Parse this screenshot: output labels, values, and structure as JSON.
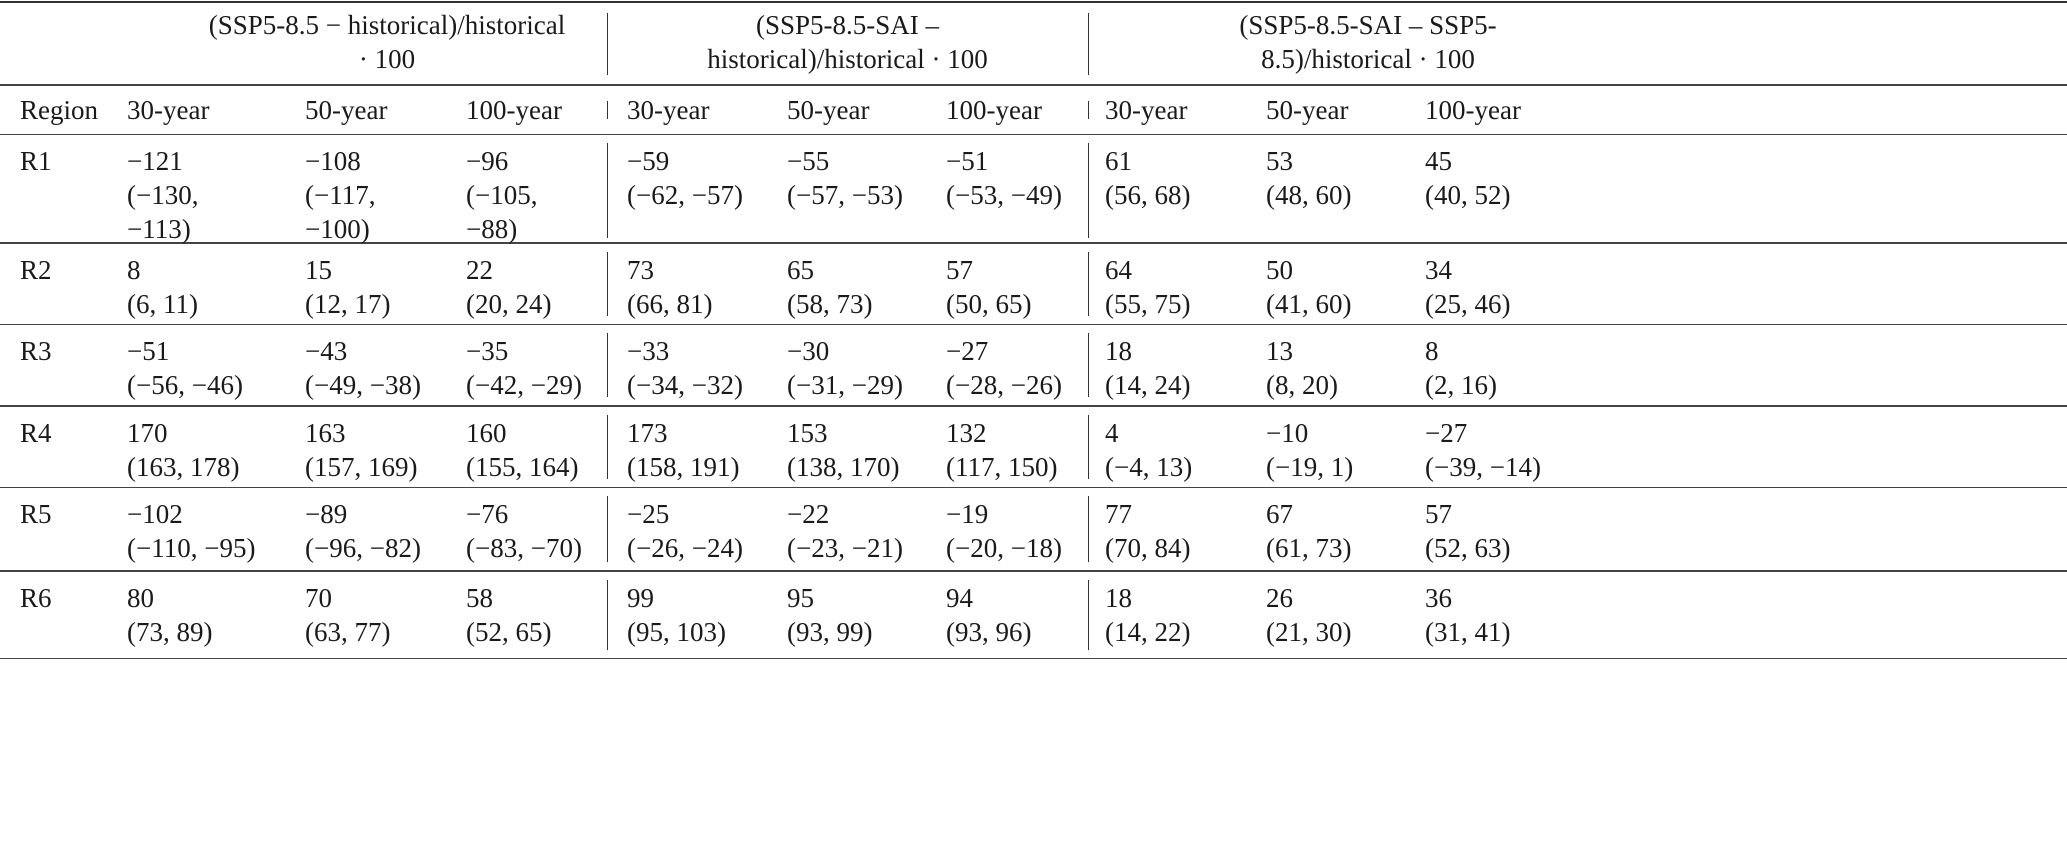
{
  "header": {
    "groups": [
      "(SSP5-8.5 − historical)/historical · 100",
      "(SSP5-8.5-SAI – historical)/historical · 100",
      "(SSP5-8.5-SAI – SSP5-8.5)/historical · 100"
    ],
    "region_label": "Region",
    "periods": [
      "30-year",
      "50-year",
      "100-year",
      "30-year",
      "50-year",
      "100-year",
      "30-year",
      "50-year",
      "100-year"
    ]
  },
  "rows": [
    {
      "region": "R1",
      "cells": [
        {
          "value": "−121",
          "ci": "(−130, −113)"
        },
        {
          "value": "−108",
          "ci": "(−117, −100)"
        },
        {
          "value": "−96",
          "ci": "(−105, −88)"
        },
        {
          "value": "−59",
          "ci": "(−62, −57)"
        },
        {
          "value": "−55",
          "ci": "(−57, −53)"
        },
        {
          "value": "−51",
          "ci": "(−53, −49)"
        },
        {
          "value": "61",
          "ci": "(56, 68)"
        },
        {
          "value": "53",
          "ci": "(48, 60)"
        },
        {
          "value": "45",
          "ci": "(40, 52)"
        }
      ]
    },
    {
      "region": "R2",
      "cells": [
        {
          "value": "8",
          "ci": "(6, 11)"
        },
        {
          "value": "15",
          "ci": "(12, 17)"
        },
        {
          "value": "22",
          "ci": "(20, 24)"
        },
        {
          "value": "73",
          "ci": "(66, 81)"
        },
        {
          "value": "65",
          "ci": "(58, 73)"
        },
        {
          "value": "57",
          "ci": "(50, 65)"
        },
        {
          "value": "64",
          "ci": "(55, 75)"
        },
        {
          "value": "50",
          "ci": "(41, 60)"
        },
        {
          "value": "34",
          "ci": "(25, 46)"
        }
      ]
    },
    {
      "region": "R3",
      "cells": [
        {
          "value": "−51",
          "ci": "(−56, −46)"
        },
        {
          "value": "−43",
          "ci": "(−49, −38)"
        },
        {
          "value": "−35",
          "ci": "(−42, −29)"
        },
        {
          "value": "−33",
          "ci": "(−34, −32)"
        },
        {
          "value": "−30",
          "ci": "(−31, −29)"
        },
        {
          "value": "−27",
          "ci": "(−28, −26)"
        },
        {
          "value": "18",
          "ci": "(14, 24)"
        },
        {
          "value": "13",
          "ci": "(8, 20)"
        },
        {
          "value": "8",
          "ci": "(2, 16)"
        }
      ]
    },
    {
      "region": "R4",
      "cells": [
        {
          "value": "170",
          "ci": "(163, 178)"
        },
        {
          "value": "163",
          "ci": "(157, 169)"
        },
        {
          "value": "160",
          "ci": "(155, 164)"
        },
        {
          "value": "173",
          "ci": "(158, 191)"
        },
        {
          "value": "153",
          "ci": "(138, 170)"
        },
        {
          "value": "132",
          "ci": "(117, 150)"
        },
        {
          "value": "4",
          "ci": "(−4, 13)"
        },
        {
          "value": "−10",
          "ci": "(−19, 1)"
        },
        {
          "value": "−27",
          "ci": "(−39, −14)"
        }
      ]
    },
    {
      "region": "R5",
      "cells": [
        {
          "value": "−102",
          "ci": "(−110, −95)"
        },
        {
          "value": "−89",
          "ci": "(−96, −82)"
        },
        {
          "value": "−76",
          "ci": "(−83, −70)"
        },
        {
          "value": "−25",
          "ci": "(−26, −24)"
        },
        {
          "value": "−22",
          "ci": "(−23, −21)"
        },
        {
          "value": "−19",
          "ci": "(−20, −18)"
        },
        {
          "value": "77",
          "ci": "(70, 84)"
        },
        {
          "value": "67",
          "ci": "(61, 73)"
        },
        {
          "value": "57",
          "ci": "(52, 63)"
        }
      ]
    },
    {
      "region": "R6",
      "cells": [
        {
          "value": "80",
          "ci": "(73, 89)"
        },
        {
          "value": "70",
          "ci": "(63, 77)"
        },
        {
          "value": "58",
          "ci": "(52, 65)"
        },
        {
          "value": "99",
          "ci": "(95, 103)"
        },
        {
          "value": "95",
          "ci": "(93, 99)"
        },
        {
          "value": "94",
          "ci": "(93, 96)"
        },
        {
          "value": "18",
          "ci": "(14, 22)"
        },
        {
          "value": "26",
          "ci": "(21, 30)"
        },
        {
          "value": "36",
          "ci": "(31, 41)"
        }
      ]
    }
  ]
}
